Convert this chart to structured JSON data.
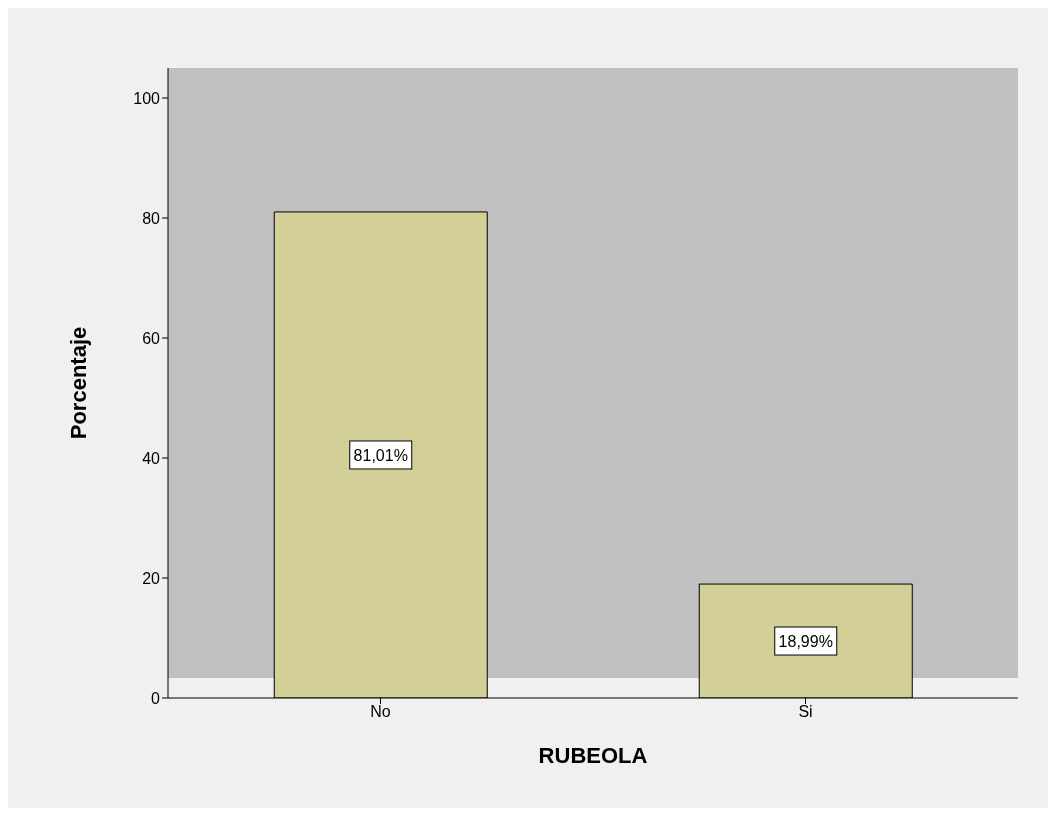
{
  "chart_data": {
    "type": "bar",
    "xlabel": "RUBEOLA",
    "ylabel": "Porcentaje",
    "categories": [
      "No",
      "Si"
    ],
    "values": [
      81.01,
      18.99
    ],
    "value_labels": [
      "81,01%",
      "18,99%"
    ],
    "color": "#d3cf98",
    "ylim": [
      0,
      105
    ],
    "yticks": [
      0,
      20,
      40,
      60,
      80,
      100
    ]
  }
}
